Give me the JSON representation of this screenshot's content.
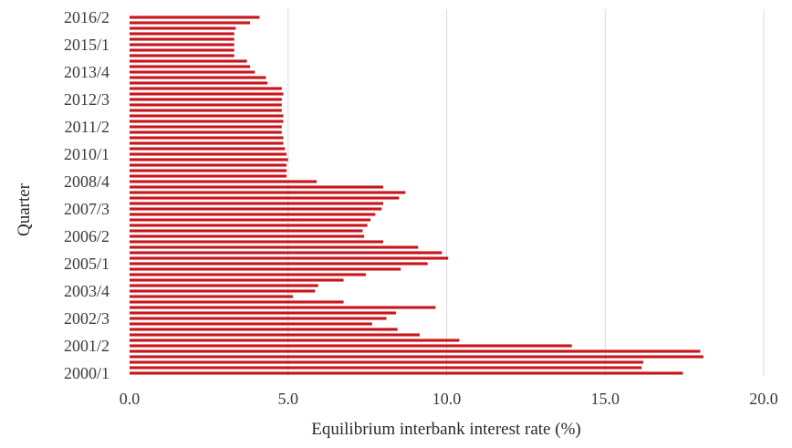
{
  "chart_data": {
    "type": "bar",
    "orientation": "horizontal",
    "xlabel": "Equilibrium interbank interest rate (%)",
    "ylabel": "Quarter",
    "xlim": [
      0,
      20
    ],
    "x_ticks": [
      "0.0",
      "5.0",
      "10.0",
      "15.0",
      "20.0"
    ],
    "grid": true,
    "bar_color": "#c8161d",
    "y_tick_labels": [
      "2000/1",
      "2001/2",
      "2002/3",
      "2003/4",
      "2005/1",
      "2006/2",
      "2007/3",
      "2008/4",
      "2010/1",
      "2011/2",
      "2012/3",
      "2013/4",
      "2015/1",
      "2016/2"
    ],
    "categories": [
      "2000/1",
      "2000/2",
      "2000/3",
      "2000/4",
      "2001/1",
      "2001/2",
      "2001/3",
      "2001/4",
      "2002/1",
      "2002/2",
      "2002/3",
      "2002/4",
      "2003/1",
      "2003/2",
      "2003/3",
      "2003/4",
      "2004/1",
      "2004/2",
      "2004/3",
      "2004/4",
      "2005/1",
      "2005/2",
      "2005/3",
      "2005/4",
      "2006/1",
      "2006/2",
      "2006/3",
      "2006/4",
      "2007/1",
      "2007/2",
      "2007/3",
      "2007/4",
      "2008/1",
      "2008/2",
      "2008/3",
      "2008/4",
      "2009/1",
      "2009/2",
      "2009/3",
      "2009/4",
      "2010/1",
      "2010/2",
      "2010/3",
      "2010/4",
      "2011/1",
      "2011/2",
      "2011/3",
      "2011/4",
      "2012/1",
      "2012/2",
      "2012/3",
      "2012/4",
      "2013/1",
      "2013/2",
      "2013/3",
      "2013/4",
      "2014/1",
      "2014/2",
      "2014/3",
      "2014/4",
      "2015/1",
      "2015/2",
      "2015/3",
      "2015/4",
      "2016/1",
      "2016/2"
    ],
    "values": [
      17.45,
      16.15,
      16.2,
      18.1,
      18.0,
      13.95,
      10.4,
      9.15,
      8.45,
      7.65,
      8.1,
      8.4,
      9.65,
      6.75,
      5.15,
      5.85,
      5.95,
      6.75,
      7.45,
      8.55,
      9.4,
      10.05,
      9.85,
      9.1,
      8.0,
      7.4,
      7.35,
      7.5,
      7.6,
      7.75,
      7.95,
      8.0,
      8.5,
      8.7,
      8.0,
      5.9,
      4.95,
      4.95,
      4.95,
      5.0,
      4.95,
      4.9,
      4.85,
      4.85,
      4.8,
      4.8,
      4.85,
      4.85,
      4.8,
      4.8,
      4.8,
      4.85,
      4.8,
      4.35,
      4.3,
      3.95,
      3.8,
      3.7,
      3.3,
      3.3,
      3.3,
      3.3,
      3.3,
      3.35,
      3.8,
      4.1
    ]
  }
}
